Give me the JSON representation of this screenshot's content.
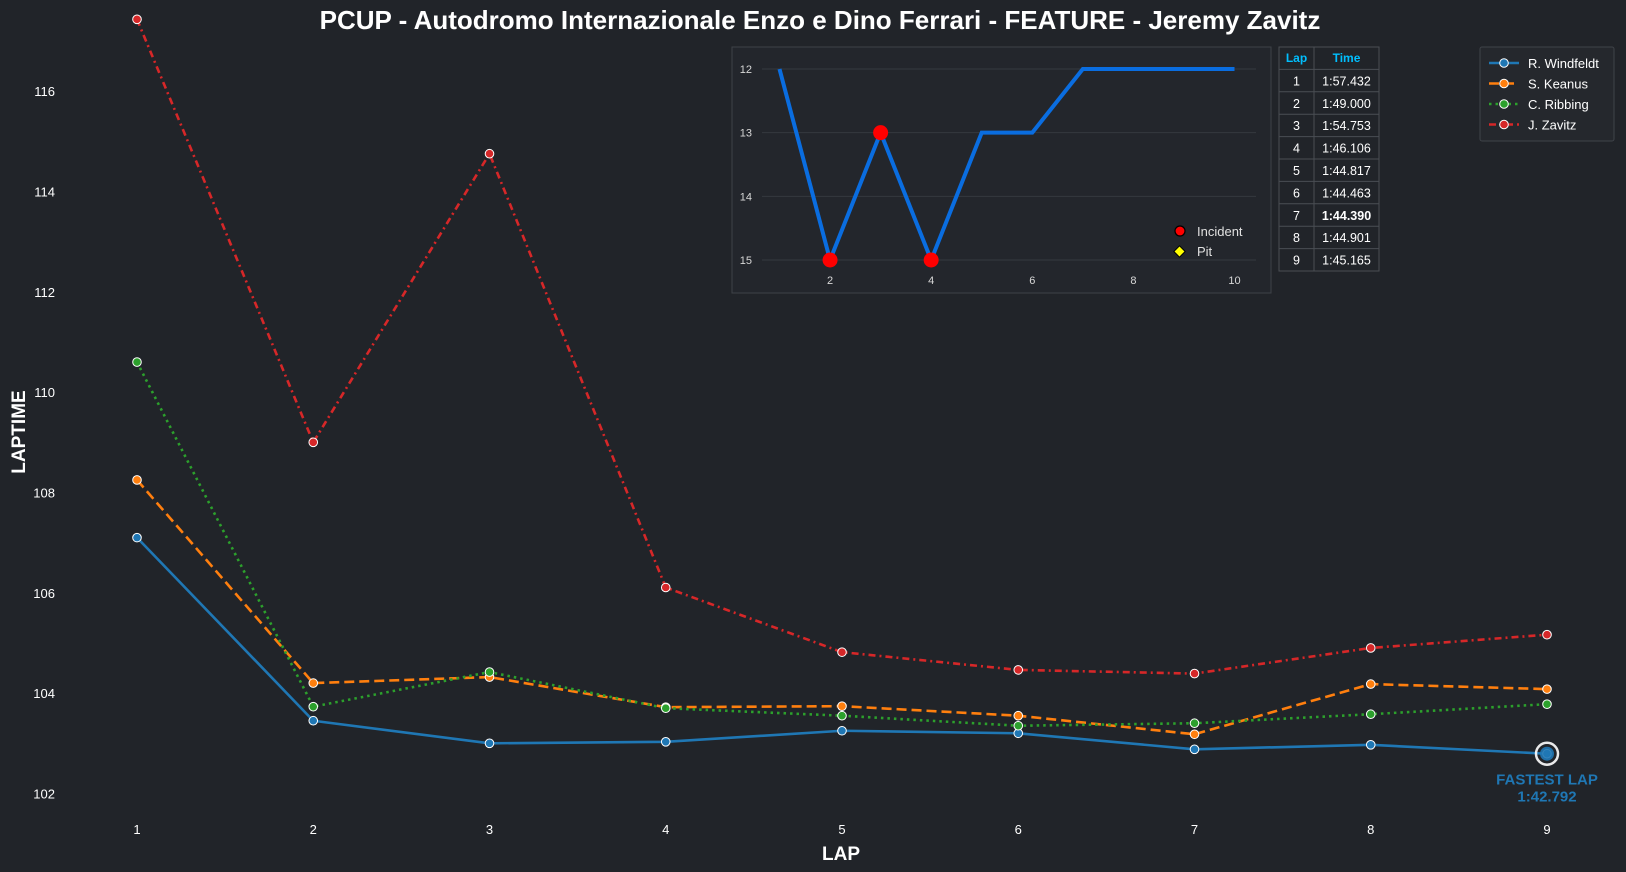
{
  "chart_data": [
    {
      "type": "line",
      "title": "PCUP - Autodromo Internazionale Enzo e Dino Ferrari - FEATURE - Jeremy Zavitz",
      "xlabel": "LAP",
      "ylabel": "LAPTIME",
      "categories": [
        1,
        2,
        3,
        4,
        5,
        6,
        7,
        8,
        9
      ],
      "ylim": [
        101.8,
        117.0
      ],
      "yticks": [
        102,
        104,
        106,
        108,
        110,
        112,
        114,
        116
      ],
      "grid": false,
      "legend_position": "top-right",
      "series": [
        {
          "name": "R. Windfeldt",
          "color": "#1f77b4",
          "line_style": "solid",
          "values": [
            107.1,
            103.45,
            103.0,
            103.03,
            103.25,
            103.2,
            102.88,
            102.97,
            102.792
          ]
        },
        {
          "name": "S. Keanus",
          "color": "#ff7f0e",
          "line_style": "dashed",
          "values": [
            108.25,
            104.2,
            104.32,
            103.72,
            103.74,
            103.55,
            103.18,
            104.18,
            104.08
          ]
        },
        {
          "name": "C. Ribbing",
          "color": "#2ca02c",
          "line_style": "dotted",
          "values": [
            110.6,
            103.73,
            104.42,
            103.7,
            103.55,
            103.35,
            103.4,
            103.58,
            103.78
          ]
        },
        {
          "name": "J. Zavitz",
          "color": "#d62728",
          "line_style": "dashdot",
          "values": [
            117.432,
            109.0,
            114.753,
            106.106,
            104.817,
            104.463,
            104.39,
            104.901,
            105.165
          ]
        }
      ],
      "annotation": {
        "line1": "FASTEST LAP",
        "line2": "1:42.792",
        "lap": 9,
        "value": 102.792,
        "color": "#1f77b4"
      }
    },
    {
      "type": "line",
      "title": "",
      "x": [
        1,
        2,
        3,
        4,
        5,
        6,
        7,
        8,
        9,
        10
      ],
      "values": [
        12,
        15,
        13,
        15,
        13,
        13,
        12,
        12,
        12,
        12
      ],
      "xticks": [
        2,
        4,
        6,
        8,
        10
      ],
      "yticks": [
        12,
        13,
        14,
        15
      ],
      "y_inverted": true,
      "color": "#0a6de0",
      "incidents": [
        {
          "x": 2,
          "y": 15
        },
        {
          "x": 3,
          "y": 13
        },
        {
          "x": 4,
          "y": 15
        }
      ],
      "pits": [],
      "legend": [
        {
          "label": "Incident",
          "color": "#ff0000"
        },
        {
          "label": "Pit",
          "color": "#ffff00"
        }
      ],
      "grid": true
    },
    {
      "type": "table",
      "columns": [
        "Lap",
        "Time"
      ],
      "header_color": "#00bfff",
      "highlight_color": "#ffff00",
      "rows": [
        {
          "lap": "1",
          "time": "1:57.432"
        },
        {
          "lap": "2",
          "time": "1:49.000"
        },
        {
          "lap": "3",
          "time": "1:54.753"
        },
        {
          "lap": "4",
          "time": "1:46.106"
        },
        {
          "lap": "5",
          "time": "1:44.817"
        },
        {
          "lap": "6",
          "time": "1:44.463"
        },
        {
          "lap": "7",
          "time": "1:44.390",
          "highlight": true
        },
        {
          "lap": "8",
          "time": "1:44.901"
        },
        {
          "lap": "9",
          "time": "1:45.165"
        }
      ]
    }
  ]
}
